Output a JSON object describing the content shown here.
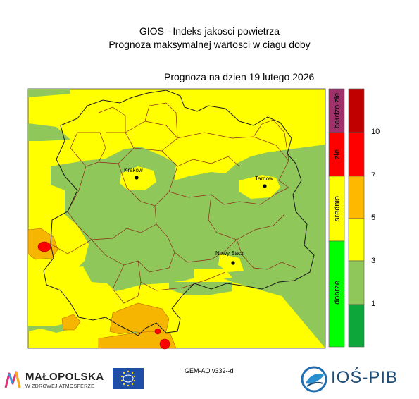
{
  "header": {
    "line1": "GIOS - Indeks jakosci powietrza",
    "line2": "Prognoza maksymalnej wartosci w ciagu doby",
    "forecast_date": "Prognoza na dzien  19 lutego 2026"
  },
  "map": {
    "cities": [
      {
        "name": "Krakow"
      },
      {
        "name": "Tarnow"
      },
      {
        "name": "Nowy Sacz"
      }
    ],
    "colors": {
      "yellow": "#ffff00",
      "green": "#8fc75a",
      "orange": "#f6b500",
      "red": "#ff0000",
      "border": "#8b2a1a"
    }
  },
  "legend_categories": [
    {
      "label": "bardzo złe",
      "color": "#a0306a"
    },
    {
      "label": "złe",
      "color": "#ff0000"
    },
    {
      "label": "srednio",
      "color": "#ffff00"
    },
    {
      "label": "dobrze",
      "color": "#00ff00"
    }
  ],
  "colorbar": {
    "colors": [
      "#0da63a",
      "#8fc75a",
      "#ffff00",
      "#ffb800",
      "#ff0000",
      "#c00000"
    ],
    "ticks": [
      "1",
      "3",
      "5",
      "7",
      "10"
    ]
  },
  "footer": {
    "model": "GEM-AQ v332--d",
    "malopolska_name": "MAŁOPOLSKA",
    "malopolska_sub": "W ZDROWEJ ATMOSFERZE",
    "ios_name": "IOŚ-PIB"
  }
}
